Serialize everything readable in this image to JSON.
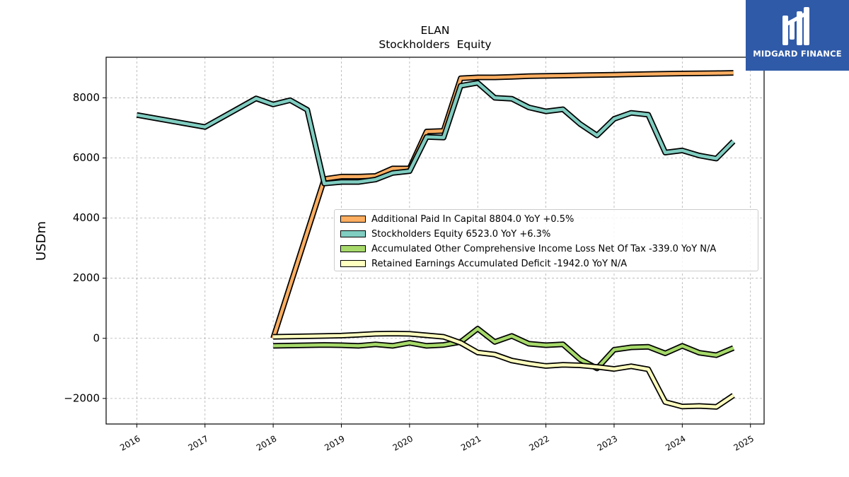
{
  "chart_data": {
    "type": "line",
    "title": "ELAN",
    "subtitle": "Stockholders  Equity",
    "xlabel": "",
    "ylabel": "USDm",
    "xlim": [
      2015.55,
      2025.2
    ],
    "ylim": [
      -2850,
      9350
    ],
    "x_ticks": [
      2016,
      2017,
      2018,
      2019,
      2020,
      2021,
      2022,
      2023,
      2024,
      2025
    ],
    "y_ticks": [
      -2000,
      0,
      2000,
      4000,
      6000,
      8000
    ],
    "y_tick_labels": [
      "−2000",
      "0",
      "2000",
      "4000",
      "6000",
      "8000"
    ],
    "grid": true,
    "legend_position": "center-right",
    "series": [
      {
        "name": "Additional Paid In Capital  8804.0 YoY +0.5%",
        "color": "#fdae61",
        "x": [
          2018.0,
          2018.75,
          2019.0,
          2019.25,
          2019.5,
          2019.75,
          2020.0,
          2020.25,
          2020.5,
          2020.75,
          2021.0,
          2021.25,
          2021.5,
          2021.75,
          2022.0,
          2022.25,
          2022.5,
          2022.75,
          2023.0,
          2023.25,
          2023.5,
          2023.75,
          2024.0,
          2024.25,
          2024.5,
          2024.75
        ],
        "y": [
          0,
          5300,
          5380,
          5380,
          5400,
          5650,
          5650,
          6880,
          6900,
          8650,
          8680,
          8680,
          8700,
          8720,
          8730,
          8740,
          8750,
          8760,
          8770,
          8780,
          8790,
          8800,
          8810,
          8815,
          8820,
          8830
        ]
      },
      {
        "name": "Stockholders Equity  6523.0 YoY +6.3%",
        "color": "#80cdc1",
        "x": [
          2016.0,
          2017.0,
          2017.75,
          2018.0,
          2018.25,
          2018.5,
          2018.75,
          2019.0,
          2019.25,
          2019.5,
          2019.75,
          2020.0,
          2020.25,
          2020.5,
          2020.75,
          2021.0,
          2021.25,
          2021.5,
          2021.75,
          2022.0,
          2022.25,
          2022.5,
          2022.75,
          2023.0,
          2023.25,
          2023.5,
          2023.75,
          2024.0,
          2024.25,
          2024.5,
          2024.75
        ],
        "y": [
          7430,
          7030,
          7980,
          7780,
          7920,
          7600,
          5150,
          5200,
          5200,
          5280,
          5500,
          5560,
          6700,
          6680,
          8400,
          8500,
          8000,
          7970,
          7680,
          7550,
          7620,
          7130,
          6750,
          7300,
          7500,
          7440,
          6180,
          6250,
          6080,
          5980,
          6550
        ]
      },
      {
        "name": "Accumulated Other Comprehensive Income Loss Net Of Tax  -339.0 YoY N/A",
        "color": "#a6d96a",
        "x": [
          2018.0,
          2018.75,
          2019.0,
          2019.25,
          2019.5,
          2019.75,
          2020.0,
          2020.25,
          2020.5,
          2020.75,
          2021.0,
          2021.25,
          2021.5,
          2021.75,
          2022.0,
          2022.25,
          2022.5,
          2022.75,
          2023.0,
          2023.25,
          2023.5,
          2023.75,
          2024.0,
          2024.25,
          2024.5,
          2024.75
        ],
        "y": [
          -250,
          -220,
          -230,
          -250,
          -200,
          -250,
          -150,
          -250,
          -220,
          -120,
          320,
          -120,
          80,
          -180,
          -230,
          -200,
          -700,
          -1000,
          -380,
          -300,
          -280,
          -500,
          -250,
          -480,
          -560,
          -320
        ]
      },
      {
        "name": "Retained Earnings Accumulated Deficit  -1942.0 YoY N/A",
        "color": "#ffffbf",
        "x": [
          2018.0,
          2018.75,
          2019.0,
          2019.25,
          2019.5,
          2019.75,
          2020.0,
          2020.25,
          2020.5,
          2020.75,
          2021.0,
          2021.25,
          2021.5,
          2021.75,
          2022.0,
          2022.25,
          2022.5,
          2022.75,
          2023.0,
          2023.25,
          2023.5,
          2023.75,
          2024.0,
          2024.25,
          2024.5,
          2024.75
        ],
        "y": [
          50,
          80,
          90,
          120,
          150,
          160,
          150,
          100,
          50,
          -150,
          -470,
          -540,
          -740,
          -840,
          -920,
          -880,
          -900,
          -950,
          -1020,
          -930,
          -1030,
          -2120,
          -2270,
          -2250,
          -2280,
          -1900
        ]
      }
    ]
  },
  "logo": {
    "text": "MIDGARD FINANCE",
    "icon": "midgard-logo-icon"
  }
}
